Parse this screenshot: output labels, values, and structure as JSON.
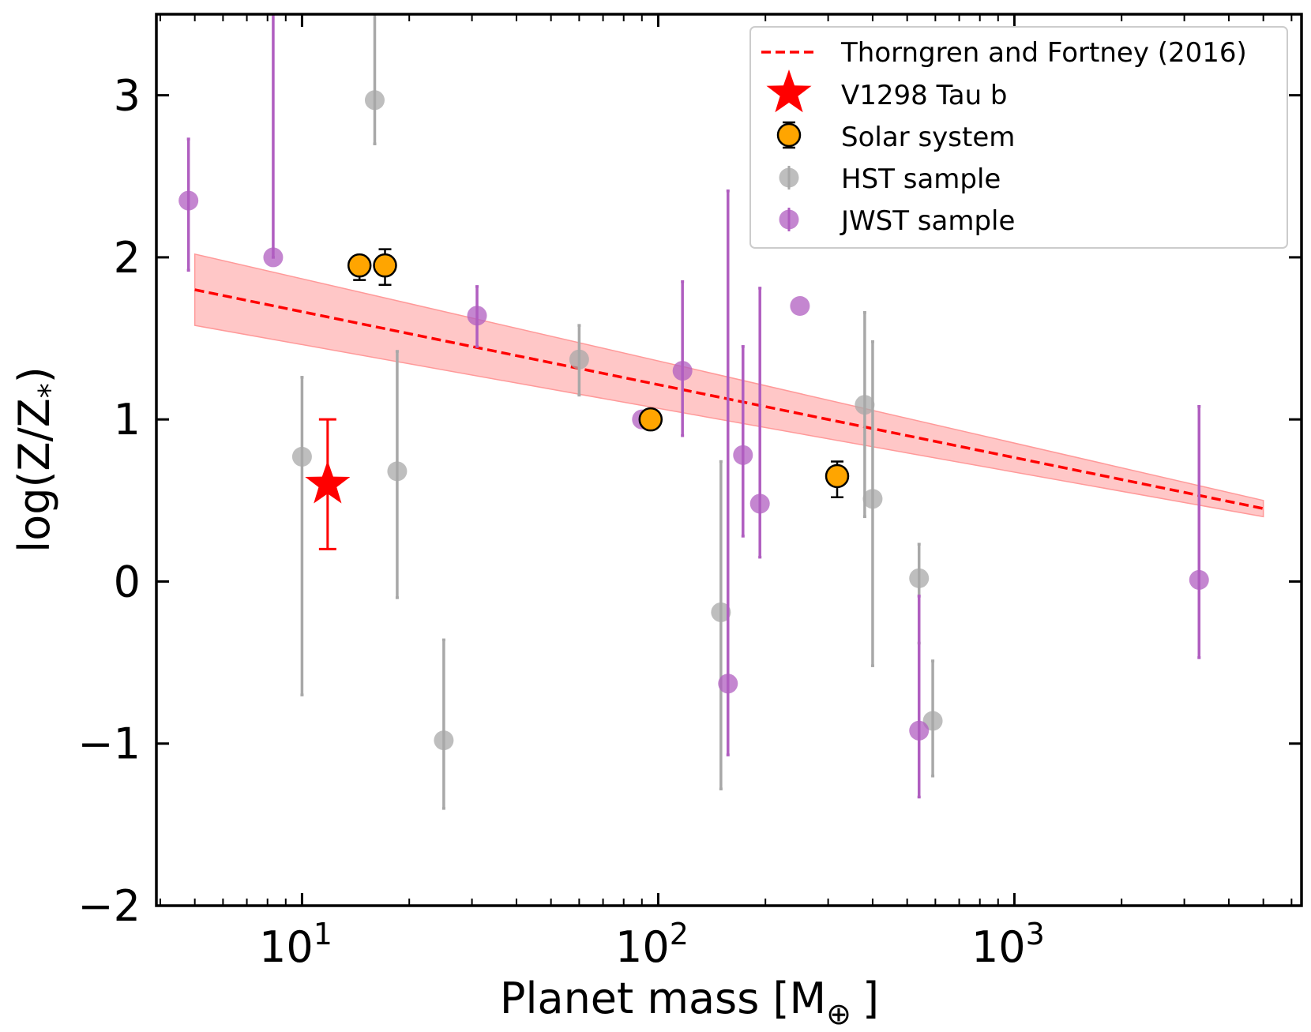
{
  "chart_data": {
    "type": "scatter",
    "xscale": "log",
    "xlim": [
      3.9,
      6400
    ],
    "ylim": [
      -2,
      3.5
    ],
    "xlabel": "Planet mass [M",
    "xlabel_sub": "⊕",
    "xlabel_end": "]",
    "ylabel": "log(Z/Z",
    "ylabel_sub": "*",
    "ylabel_end": ")",
    "x_ticks": [
      {
        "value": 10,
        "base": "10",
        "exp": "1"
      },
      {
        "value": 100,
        "base": "10",
        "exp": "2"
      },
      {
        "value": 1000,
        "base": "10",
        "exp": "3"
      }
    ],
    "y_ticks": [
      {
        "value": -2,
        "label": "−2"
      },
      {
        "value": -1,
        "label": "−1"
      },
      {
        "value": 0,
        "label": "0"
      },
      {
        "value": 1,
        "label": "1"
      },
      {
        "value": 2,
        "label": "2"
      },
      {
        "value": 3,
        "label": "3"
      }
    ],
    "grid": false,
    "legend_position": "top-right",
    "legend": [
      {
        "key": "fit",
        "label": "Thorngren and Fortney (2016)"
      },
      {
        "key": "star",
        "label": "V1298 Tau b"
      },
      {
        "key": "solar",
        "label": "Solar system"
      },
      {
        "key": "hst",
        "label": "HST sample"
      },
      {
        "key": "jwst",
        "label": "JWST sample"
      }
    ],
    "colors": {
      "fit_line": "#ff0000",
      "fit_band": "#ff9999",
      "star": "#ff0000",
      "solar": "#ffa500",
      "hst": "#a8a8a8",
      "jwst": "#b05ec0"
    },
    "fit": {
      "x": [
        5,
        5000
      ],
      "y": [
        1.8,
        0.45
      ],
      "band_upper": [
        2.02,
        0.5
      ],
      "band_lower": [
        1.58,
        0.4
      ]
    },
    "series": [
      {
        "name": "HST sample",
        "key": "hst",
        "points": [
          {
            "x": 16,
            "y": 2.97,
            "ylo": 2.7,
            "yhi": 3.55
          },
          {
            "x": 10,
            "y": 0.77,
            "ylo": -0.7,
            "yhi": 1.26
          },
          {
            "x": 18.5,
            "y": 0.68,
            "ylo": -0.1,
            "yhi": 1.42
          },
          {
            "x": 25,
            "y": -0.98,
            "ylo": -1.4,
            "yhi": -0.36
          },
          {
            "x": 60,
            "y": 1.37,
            "ylo": 1.15,
            "yhi": 1.58
          },
          {
            "x": 150,
            "y": -0.19,
            "ylo": -1.28,
            "yhi": 0.74
          },
          {
            "x": 380,
            "y": 1.09,
            "ylo": 0.4,
            "yhi": 1.66
          },
          {
            "x": 400,
            "y": 0.51,
            "ylo": -0.52,
            "yhi": 1.48
          },
          {
            "x": 540,
            "y": 0.02,
            "ylo": -0.38,
            "yhi": 0.23
          },
          {
            "x": 590,
            "y": -0.86,
            "ylo": -1.2,
            "yhi": -0.49
          }
        ]
      },
      {
        "name": "JWST sample",
        "key": "jwst",
        "points": [
          {
            "x": 4.8,
            "y": 2.35,
            "ylo": 1.92,
            "yhi": 2.73
          },
          {
            "x": 8.3,
            "y": 2.0,
            "ylo": 2.0,
            "yhi": 3.55
          },
          {
            "x": 31,
            "y": 1.64,
            "ylo": 1.45,
            "yhi": 1.82
          },
          {
            "x": 90,
            "y": 1.0,
            "ylo": 1.0,
            "yhi": 1.0
          },
          {
            "x": 117,
            "y": 1.3,
            "ylo": 0.9,
            "yhi": 1.85
          },
          {
            "x": 157,
            "y": -0.63,
            "ylo": -1.07,
            "yhi": 2.41
          },
          {
            "x": 173,
            "y": 0.78,
            "ylo": 0.28,
            "yhi": 1.45
          },
          {
            "x": 193,
            "y": 0.48,
            "ylo": 0.15,
            "yhi": 1.81
          },
          {
            "x": 250,
            "y": 1.7,
            "ylo": 1.7,
            "yhi": 1.7
          },
          {
            "x": 540,
            "y": -0.92,
            "ylo": -1.33,
            "yhi": -0.09
          },
          {
            "x": 3300,
            "y": 0.01,
            "ylo": -0.47,
            "yhi": 1.08
          }
        ]
      },
      {
        "name": "Solar system",
        "key": "solar",
        "points": [
          {
            "x": 14.5,
            "y": 1.95,
            "ylo": 1.86,
            "yhi": 1.95
          },
          {
            "x": 17.1,
            "y": 1.95,
            "ylo": 1.83,
            "yhi": 2.05
          },
          {
            "x": 95.2,
            "y": 1.0,
            "ylo": 1.0,
            "yhi": 1.0
          },
          {
            "x": 318,
            "y": 0.65,
            "ylo": 0.52,
            "yhi": 0.74
          }
        ]
      },
      {
        "name": "V1298 Tau b",
        "key": "star",
        "points": [
          {
            "x": 11.8,
            "y": 0.6,
            "ylo": 0.2,
            "yhi": 1.0
          }
        ]
      }
    ]
  }
}
